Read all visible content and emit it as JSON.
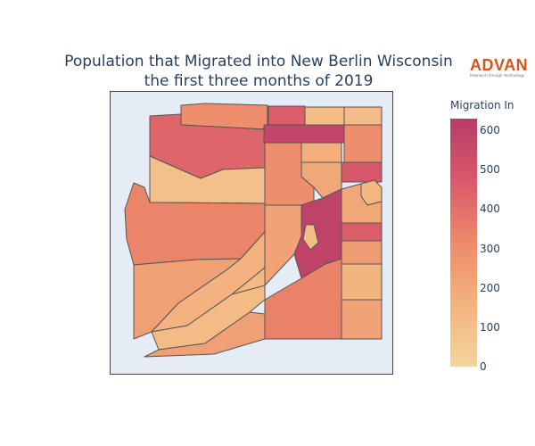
{
  "title_line1": "Population that Migrated into New Berlin Wisconsin",
  "title_line2": "the first three months of 2019",
  "logo": {
    "text": "ADVAN",
    "tagline": "Research through Technology",
    "color": "#d9541c"
  },
  "colorbar": {
    "title": "Migration In",
    "min": 0,
    "max": 630,
    "ticks": [
      "0",
      "100",
      "200",
      "300",
      "400",
      "500",
      "600"
    ],
    "colorscale": [
      "#f4d49e",
      "#f3b37f",
      "#ed8a6a",
      "#d9596a",
      "#b73c68"
    ]
  },
  "map": {
    "background": "#e5ecf6",
    "border_color": "#555555",
    "regions": [
      {
        "id": "nw-top-strip",
        "value": 300
      },
      {
        "id": "north-west-large",
        "value": 430
      },
      {
        "id": "north-center-top",
        "value": 460
      },
      {
        "id": "north-center-wide",
        "value": 570
      },
      {
        "id": "north-mid-right",
        "value": 110
      },
      {
        "id": "ne-top-corner",
        "value": 120
      },
      {
        "id": "ne-right-2",
        "value": 300
      },
      {
        "id": "ne-right-3",
        "value": 480
      },
      {
        "id": "nw-light-block",
        "value": 100
      },
      {
        "id": "center-orange",
        "value": 300
      },
      {
        "id": "mid-right-small",
        "value": 170
      },
      {
        "id": "east-notch",
        "value": 200
      },
      {
        "id": "east-small-block",
        "value": 140
      },
      {
        "id": "west-large",
        "value": 330
      },
      {
        "id": "center-column-light",
        "value": 220
      },
      {
        "id": "center-dark",
        "value": 590
      },
      {
        "id": "center-dark-hole",
        "value": 110
      },
      {
        "id": "east-dark",
        "value": 460
      },
      {
        "id": "east-light-1",
        "value": 250
      },
      {
        "id": "east-light-2",
        "value": 150
      },
      {
        "id": "east-lower",
        "value": 200
      },
      {
        "id": "sw-large",
        "value": 230
      },
      {
        "id": "sw-middle-strip",
        "value": 160
      },
      {
        "id": "s-center-light",
        "value": 130
      },
      {
        "id": "sw-bottom-strip",
        "value": 120
      },
      {
        "id": "se-large",
        "value": 340
      },
      {
        "id": "se-right-bottom",
        "value": 220
      },
      {
        "id": "center-lower-small",
        "value": 230
      }
    ]
  }
}
